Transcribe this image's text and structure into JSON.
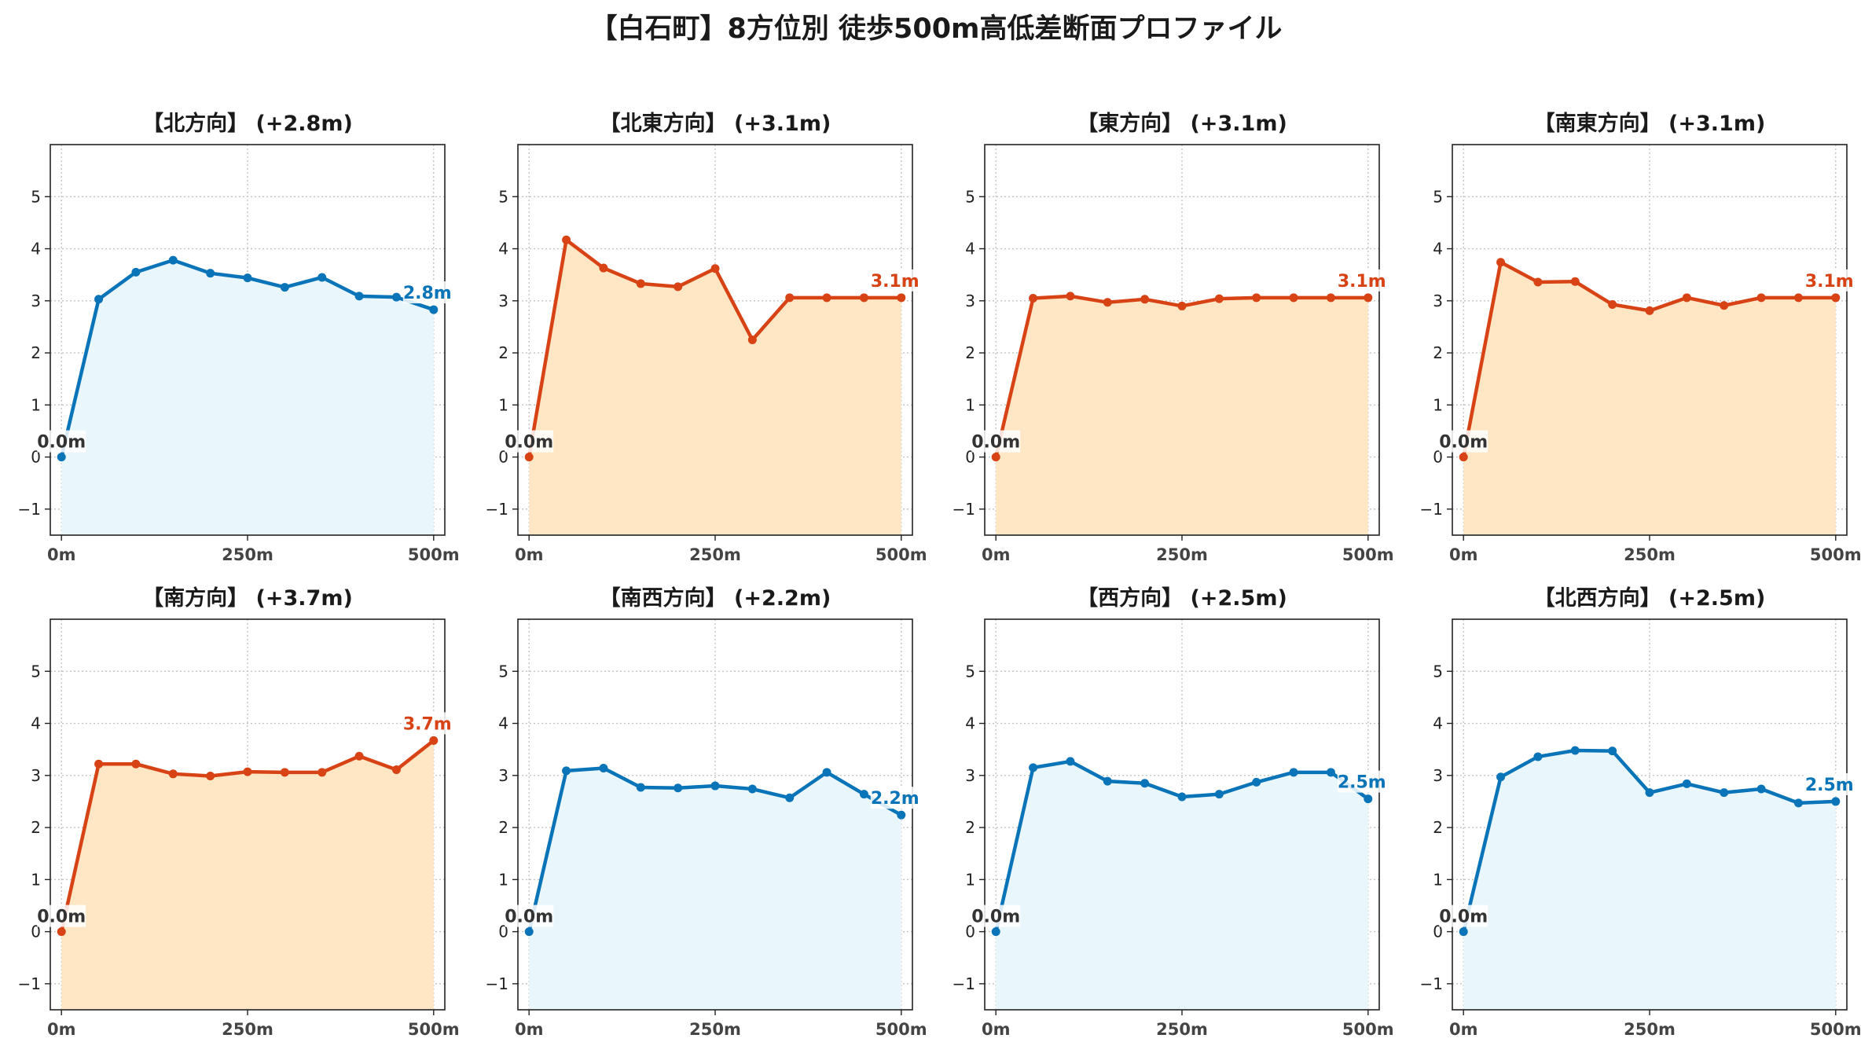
{
  "title": "【白石町】8方位別 徒歩500m高低差断面プロファイル",
  "colors": {
    "uphill_line": "#d84315",
    "uphill_fill": "#ffe6c4",
    "downhill_line": "#0a74b8",
    "downhill_fill": "#e9f6fc",
    "start_label": "#333333"
  },
  "chart_data": [
    {
      "type": "area",
      "title": "【北方向】 (+2.8m)",
      "trend": "down",
      "x": [
        0,
        50,
        100,
        150,
        200,
        250,
        300,
        350,
        400,
        450,
        500
      ],
      "values": [
        0.0,
        3.03,
        3.55,
        3.78,
        3.53,
        3.44,
        3.26,
        3.45,
        3.09,
        3.07,
        2.83
      ],
      "start_label": "0.0m",
      "end_label": "2.8m",
      "xticks": [
        "0m",
        "250m",
        "500m"
      ],
      "xlim": [
        -15,
        515
      ],
      "ylim": [
        -1.5,
        6.0
      ],
      "yticks": [
        -1,
        0,
        1,
        2,
        3,
        4,
        5
      ],
      "ytick_labels": [
        "−1",
        "0",
        "1",
        "2",
        "3",
        "4",
        "5"
      ],
      "grid": true
    },
    {
      "type": "area",
      "title": "【北東方向】 (+3.1m)",
      "trend": "up",
      "x": [
        0,
        50,
        100,
        150,
        200,
        250,
        300,
        350,
        400,
        450,
        500
      ],
      "values": [
        0.0,
        4.17,
        3.63,
        3.33,
        3.27,
        3.62,
        2.25,
        3.06,
        3.06,
        3.06,
        3.06
      ],
      "start_label": "0.0m",
      "end_label": "3.1m",
      "xticks": [
        "0m",
        "250m",
        "500m"
      ],
      "xlim": [
        -15,
        515
      ],
      "ylim": [
        -1.5,
        6.0
      ],
      "yticks": [
        -1,
        0,
        1,
        2,
        3,
        4,
        5
      ],
      "ytick_labels": [
        "−1",
        "0",
        "1",
        "2",
        "3",
        "4",
        "5"
      ],
      "grid": true
    },
    {
      "type": "area",
      "title": "【東方向】 (+3.1m)",
      "trend": "up",
      "x": [
        0,
        50,
        100,
        150,
        200,
        250,
        300,
        350,
        400,
        450,
        500
      ],
      "values": [
        0.0,
        3.05,
        3.09,
        2.97,
        3.03,
        2.9,
        3.04,
        3.06,
        3.06,
        3.06,
        3.06
      ],
      "start_label": "0.0m",
      "end_label": "3.1m",
      "xticks": [
        "0m",
        "250m",
        "500m"
      ],
      "xlim": [
        -15,
        515
      ],
      "ylim": [
        -1.5,
        6.0
      ],
      "yticks": [
        -1,
        0,
        1,
        2,
        3,
        4,
        5
      ],
      "ytick_labels": [
        "−1",
        "0",
        "1",
        "2",
        "3",
        "4",
        "5"
      ],
      "grid": true
    },
    {
      "type": "area",
      "title": "【南東方向】 (+3.1m)",
      "trend": "up",
      "x": [
        0,
        50,
        100,
        150,
        200,
        250,
        300,
        350,
        400,
        450,
        500
      ],
      "values": [
        0.0,
        3.74,
        3.36,
        3.37,
        2.93,
        2.81,
        3.06,
        2.91,
        3.06,
        3.06,
        3.06
      ],
      "start_label": "0.0m",
      "end_label": "3.1m",
      "xticks": [
        "0m",
        "250m",
        "500m"
      ],
      "xlim": [
        -15,
        515
      ],
      "ylim": [
        -1.5,
        6.0
      ],
      "yticks": [
        -1,
        0,
        1,
        2,
        3,
        4,
        5
      ],
      "ytick_labels": [
        "−1",
        "0",
        "1",
        "2",
        "3",
        "4",
        "5"
      ],
      "grid": true
    },
    {
      "type": "area",
      "title": "【南方向】 (+3.7m)",
      "trend": "up",
      "x": [
        0,
        50,
        100,
        150,
        200,
        250,
        300,
        350,
        400,
        450,
        500
      ],
      "values": [
        0.0,
        3.22,
        3.22,
        3.03,
        2.99,
        3.07,
        3.06,
        3.06,
        3.37,
        3.11,
        3.67
      ],
      "start_label": "0.0m",
      "end_label": "3.7m",
      "xticks": [
        "0m",
        "250m",
        "500m"
      ],
      "xlim": [
        -15,
        515
      ],
      "ylim": [
        -1.5,
        6.0
      ],
      "yticks": [
        -1,
        0,
        1,
        2,
        3,
        4,
        5
      ],
      "ytick_labels": [
        "−1",
        "0",
        "1",
        "2",
        "3",
        "4",
        "5"
      ],
      "grid": true
    },
    {
      "type": "area",
      "title": "【南西方向】 (+2.2m)",
      "trend": "down",
      "x": [
        0,
        50,
        100,
        150,
        200,
        250,
        300,
        350,
        400,
        450,
        500
      ],
      "values": [
        0.0,
        3.09,
        3.14,
        2.77,
        2.76,
        2.8,
        2.74,
        2.57,
        3.06,
        2.64,
        2.24
      ],
      "start_label": "0.0m",
      "end_label": "2.2m",
      "xticks": [
        "0m",
        "250m",
        "500m"
      ],
      "xlim": [
        -15,
        515
      ],
      "ylim": [
        -1.5,
        6.0
      ],
      "yticks": [
        -1,
        0,
        1,
        2,
        3,
        4,
        5
      ],
      "ytick_labels": [
        "−1",
        "0",
        "1",
        "2",
        "3",
        "4",
        "5"
      ],
      "grid": true
    },
    {
      "type": "area",
      "title": "【西方向】 (+2.5m)",
      "trend": "down",
      "x": [
        0,
        50,
        100,
        150,
        200,
        250,
        300,
        350,
        400,
        450,
        500
      ],
      "values": [
        0.0,
        3.15,
        3.27,
        2.89,
        2.85,
        2.59,
        2.64,
        2.87,
        3.06,
        3.06,
        2.55
      ],
      "start_label": "0.0m",
      "end_label": "2.5m",
      "xticks": [
        "0m",
        "250m",
        "500m"
      ],
      "xlim": [
        -15,
        515
      ],
      "ylim": [
        -1.5,
        6.0
      ],
      "yticks": [
        -1,
        0,
        1,
        2,
        3,
        4,
        5
      ],
      "ytick_labels": [
        "−1",
        "0",
        "1",
        "2",
        "3",
        "4",
        "5"
      ],
      "grid": true
    },
    {
      "type": "area",
      "title": "【北西方向】 (+2.5m)",
      "trend": "down",
      "x": [
        0,
        50,
        100,
        150,
        200,
        250,
        300,
        350,
        400,
        450,
        500
      ],
      "values": [
        0.0,
        2.97,
        3.36,
        3.48,
        3.47,
        2.67,
        2.84,
        2.67,
        2.74,
        2.47,
        2.5
      ],
      "start_label": "0.0m",
      "end_label": "2.5m",
      "xticks": [
        "0m",
        "250m",
        "500m"
      ],
      "xlim": [
        -15,
        515
      ],
      "ylim": [
        -1.5,
        6.0
      ],
      "yticks": [
        -1,
        0,
        1,
        2,
        3,
        4,
        5
      ],
      "ytick_labels": [
        "−1",
        "0",
        "1",
        "2",
        "3",
        "4",
        "5"
      ],
      "grid": true
    }
  ]
}
